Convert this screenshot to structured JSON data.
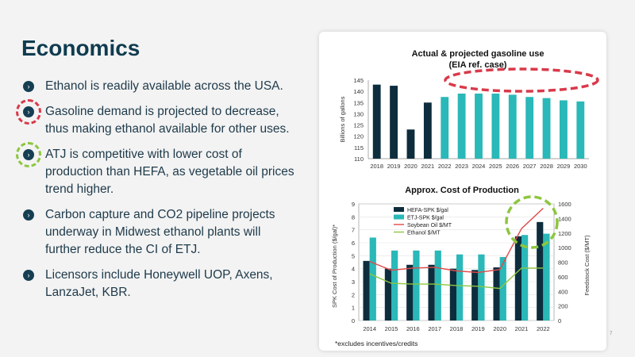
{
  "slide": {
    "title": "Economics",
    "page_number": "7",
    "footnote": "*excludes incentives/credits"
  },
  "bullets": [
    {
      "text": "Ethanol is readily available across the USA.",
      "marker": "none"
    },
    {
      "text": "Gasoline demand is projected to decrease, thus making ethanol available for other uses.",
      "marker": "red-dashed-ring"
    },
    {
      "text": "ATJ is competitive with lower cost of production than HEFA, as vegetable oil prices trend higher.",
      "marker": "green-dashed-ring"
    },
    {
      "text": "Carbon capture and CO2 pipeline projects underway in Midwest ethanol plants will further reduce the CI of ETJ.",
      "marker": "none"
    },
    {
      "text": "Licensors include Honeywell UOP, Axens, LanzaJet, KBR.",
      "marker": "none"
    }
  ],
  "colors": {
    "title": "#0f3b4f",
    "actual": "#0d2d3d",
    "projected": "#2ab8b8",
    "soybean": "#e04a4a",
    "ethanol": "#8dc63f",
    "red_highlight": "#d93a4a",
    "green_highlight": "#8dc63f"
  },
  "chart_data": [
    {
      "type": "bar",
      "title": "Actual & projected gasoline use",
      "subtitle": "(EIA ref. case)",
      "ylabel": "Billions of gallons",
      "xlabel": "",
      "ylim": [
        110,
        145
      ],
      "yticks": [
        110,
        115,
        120,
        125,
        130,
        135,
        140,
        145
      ],
      "categories": [
        "2018",
        "2019",
        "2020",
        "2021",
        "2022",
        "2023",
        "2024",
        "2025",
        "2026",
        "2027",
        "2028",
        "2029",
        "2030"
      ],
      "series": [
        {
          "name": "Actual",
          "values": [
            143,
            142.5,
            123,
            135,
            null,
            null,
            null,
            null,
            null,
            null,
            null,
            null,
            null
          ]
        },
        {
          "name": "Projected",
          "values": [
            null,
            null,
            null,
            null,
            137.5,
            139,
            139,
            139,
            138.5,
            137.5,
            137,
            136,
            135.5
          ]
        }
      ],
      "annotation": "red dashed ellipse around projected years 2022-2030"
    },
    {
      "type": "bar",
      "title": "Approx. Cost of Production",
      "ylabel": "SPK Cost of Production ($/gal)*",
      "y2label": "Feedstock Cost ($/MT)",
      "ylim": [
        0,
        9
      ],
      "yticks": [
        0,
        1,
        2,
        3,
        4,
        5,
        6,
        7,
        8,
        9
      ],
      "y2lim": [
        0,
        1600
      ],
      "y2ticks": [
        0,
        200,
        400,
        600,
        800,
        1000,
        1200,
        1400,
        1600
      ],
      "categories": [
        "2014",
        "2015",
        "2016",
        "2017",
        "2018",
        "2019",
        "2020",
        "2021",
        "2022"
      ],
      "series": [
        {
          "name": "HEFA-SPK $/gal",
          "kind": "bar",
          "axis": "left",
          "values": [
            4.6,
            4.0,
            4.3,
            4.3,
            4.0,
            3.9,
            4.1,
            6.5,
            7.6
          ]
        },
        {
          "name": "ETJ-SPK $/gal",
          "kind": "bar",
          "axis": "left",
          "values": [
            6.4,
            5.4,
            5.4,
            5.4,
            5.1,
            5.1,
            4.9,
            6.6,
            6.7
          ]
        },
        {
          "name": "Soybean Oil $/MT",
          "kind": "line",
          "axis": "right",
          "values": [
            810,
            690,
            720,
            730,
            680,
            660,
            700,
            1260,
            1540
          ]
        },
        {
          "name": "Ethanol $/MT",
          "kind": "line",
          "axis": "right",
          "values": [
            640,
            510,
            500,
            500,
            480,
            470,
            440,
            720,
            720
          ]
        }
      ],
      "legend": [
        "HEFA-SPK $/gal",
        "ETJ-SPK $/gal",
        "Soybean Oil $/MT",
        "Ethanol $/MT"
      ],
      "annotation": "green dashed circle around 2021-2022"
    }
  ]
}
